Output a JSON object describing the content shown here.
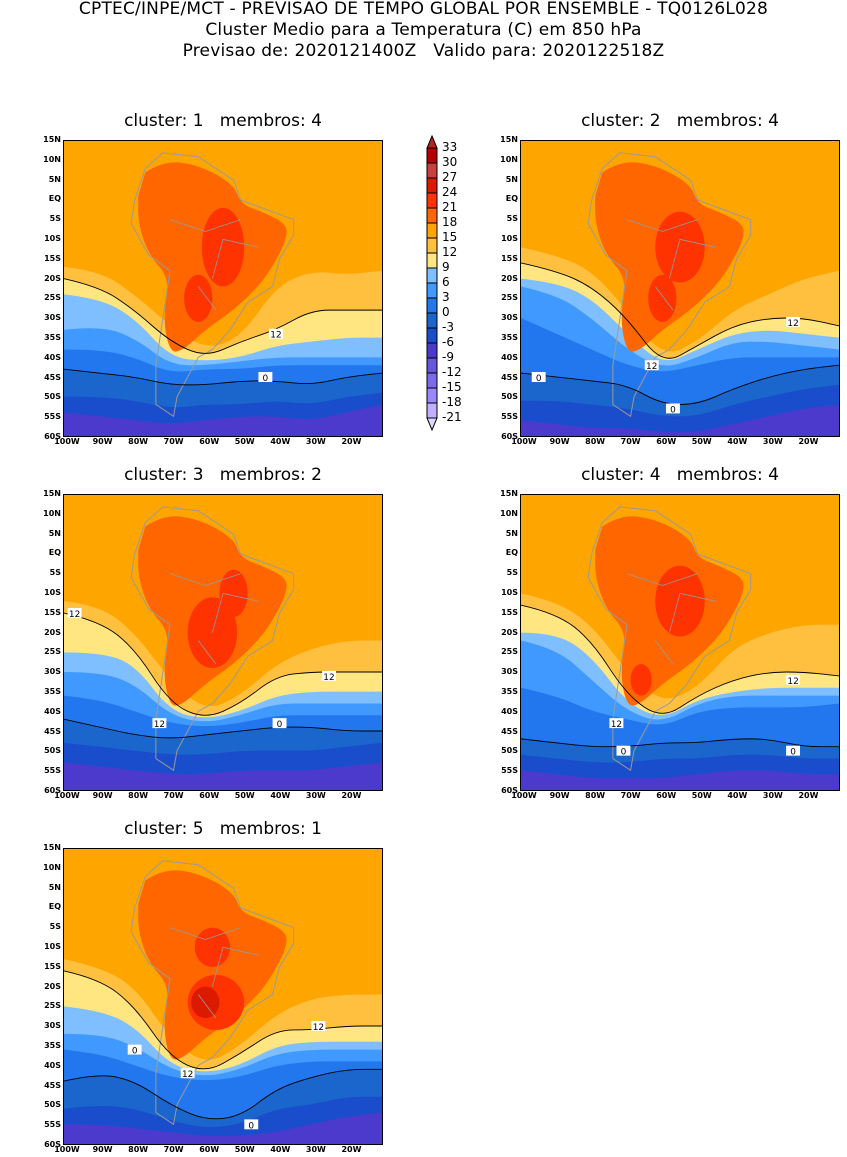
{
  "header": {
    "line1": "CPTEC/INPE/MCT - PREVISAO DE TEMPO GLOBAL POR ENSEMBLE - TQ0126L028",
    "line2": "Cluster Medio para a Temperatura (C) em 850 hPa",
    "line3": "Previsao de: 2020121400Z   Valido para: 2020122518Z"
  },
  "axes": {
    "y_ticks": [
      "15N",
      "10N",
      "5N",
      "EQ",
      "5S",
      "10S",
      "15S",
      "20S",
      "25S",
      "30S",
      "35S",
      "40S",
      "45S",
      "50S",
      "55S",
      "60S"
    ],
    "x_ticks": [
      "100W",
      "90W",
      "80W",
      "70W",
      "60W",
      "50W",
      "40W",
      "30W",
      "20W"
    ]
  },
  "panels": [
    {
      "title": "cluster: 1   membros: 4",
      "contour_labels": [
        "12",
        "0"
      ]
    },
    {
      "title": "cluster: 2   membros: 4",
      "contour_labels": [
        "12",
        "12",
        "0",
        "0"
      ]
    },
    {
      "title": "cluster: 3   membros: 2",
      "contour_labels": [
        "12",
        "12",
        "12",
        "0"
      ]
    },
    {
      "title": "cluster: 4   membros: 4",
      "contour_labels": [
        "12",
        "12",
        "0",
        "0"
      ]
    },
    {
      "title": "cluster: 5   membros: 1",
      "contour_labels": [
        "12",
        "12",
        "0",
        "0"
      ]
    }
  ],
  "colorbar": {
    "labels": [
      "33",
      "30",
      "27",
      "24",
      "21",
      "18",
      "15",
      "12",
      "9",
      "6",
      "3",
      "0",
      "-3",
      "-6",
      "-9",
      "-12",
      "-15",
      "-18",
      "-21"
    ],
    "colors": [
      "#b8231f",
      "#b40000",
      "#cc3d3d",
      "#dc1a00",
      "#ff3300",
      "#ff6600",
      "#ffa500",
      "#ffc040",
      "#ffe680",
      "#80bfff",
      "#4099ff",
      "#2277ee",
      "#1a66cc",
      "#1a4dcc",
      "#4b3acc",
      "#6655dd",
      "#7b6bea",
      "#9988ff",
      "#c0b0ff",
      "#ddd8ff"
    ]
  }
}
